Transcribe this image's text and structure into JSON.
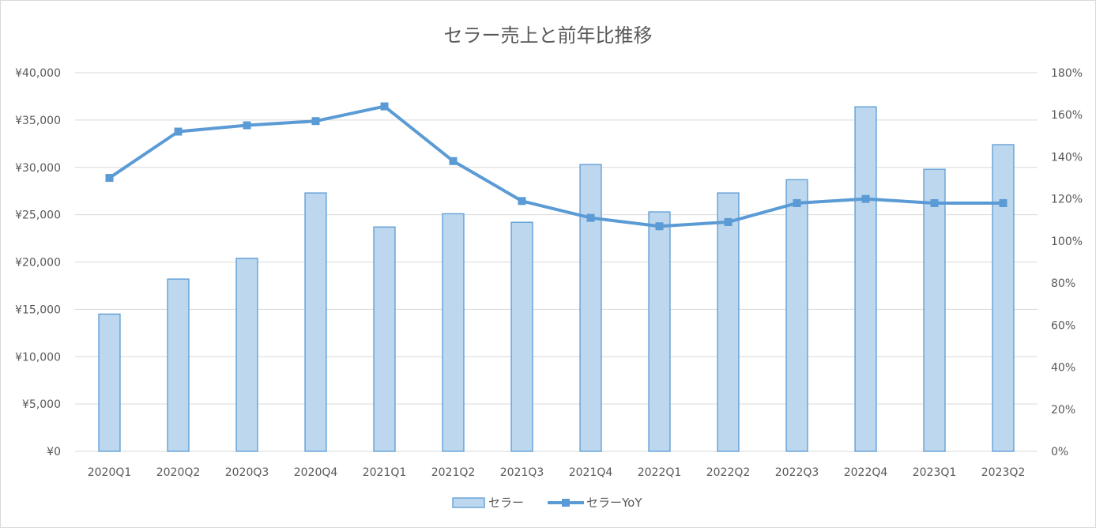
{
  "chart_data": {
    "type": "bar",
    "title": "セラー売上と前年比推移",
    "categories": [
      "2020Q1",
      "2020Q2",
      "2020Q3",
      "2020Q4",
      "2021Q1",
      "2021Q2",
      "2021Q3",
      "2021Q4",
      "2022Q1",
      "2022Q2",
      "2022Q3",
      "2022Q4",
      "2023Q1",
      "2023Q2"
    ],
    "series": [
      {
        "name": "セラー",
        "type": "bar",
        "axis": "left",
        "values": [
          14500,
          18200,
          20400,
          27300,
          23700,
          25100,
          24200,
          30300,
          25300,
          27300,
          28700,
          36400,
          29800,
          32400
        ]
      },
      {
        "name": "セラーYoY",
        "type": "line",
        "axis": "right",
        "unit": "percent",
        "values": [
          130,
          152,
          155,
          157,
          164,
          138,
          119,
          111,
          107,
          109,
          118,
          120,
          118,
          118
        ]
      }
    ],
    "y_left": {
      "ylim": [
        0,
        40000
      ],
      "ticks": [
        "¥0",
        "¥5,000",
        "¥10,000",
        "¥15,000",
        "¥20,000",
        "¥25,000",
        "¥30,000",
        "¥35,000",
        "¥40,000"
      ]
    },
    "y_right": {
      "ylim": [
        0,
        180
      ],
      "ticks": [
        "0%",
        "20%",
        "40%",
        "60%",
        "80%",
        "100%",
        "120%",
        "140%",
        "160%",
        "180%"
      ]
    },
    "grid": true,
    "legend_position": "bottom-center",
    "colors": {
      "bar_fill": "#bdd7ee",
      "bar_stroke": "#5b9bd5",
      "line": "#5b9bd5",
      "grid": "#d9d9d9",
      "text": "#595959"
    }
  }
}
